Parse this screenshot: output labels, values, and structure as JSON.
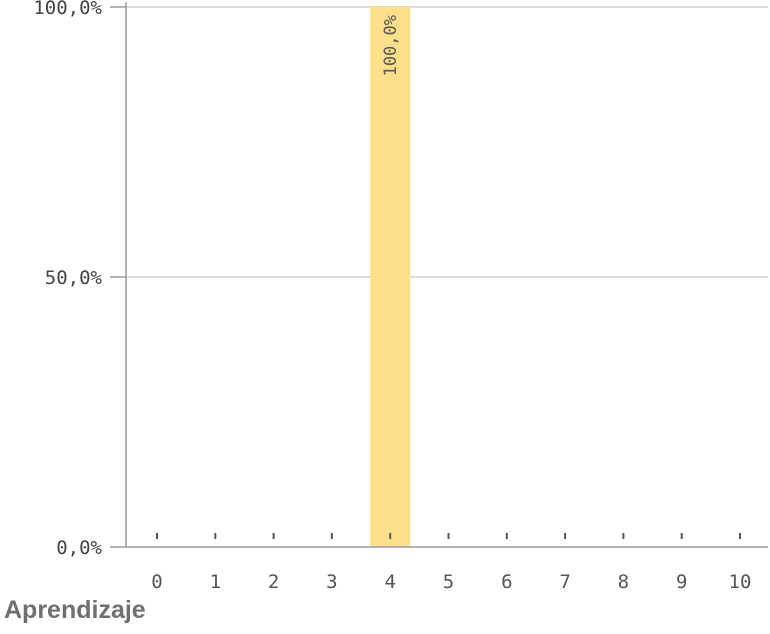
{
  "chart_data": {
    "type": "bar",
    "title": "Aprendizaje",
    "categories": [
      "0",
      "1",
      "2",
      "3",
      "4",
      "5",
      "6",
      "7",
      "8",
      "9",
      "10"
    ],
    "values": [
      0,
      0,
      0,
      0,
      100,
      0,
      0,
      0,
      0,
      0,
      0
    ],
    "data_labels": [
      "",
      "",
      "",
      "",
      "100,0%",
      "",
      "",
      "",
      "",
      "",
      ""
    ],
    "ylim": [
      0,
      100
    ],
    "yticks": [
      {
        "value": 0,
        "label": "0,0%"
      },
      {
        "value": 50,
        "label": "50,0%"
      },
      {
        "value": 100,
        "label": "100,0%"
      }
    ],
    "grid": true,
    "colors": {
      "bar": "#FDDE89",
      "grid": "#D0D0D0",
      "axis": "#9A9A9A",
      "tick": "#555555"
    }
  }
}
